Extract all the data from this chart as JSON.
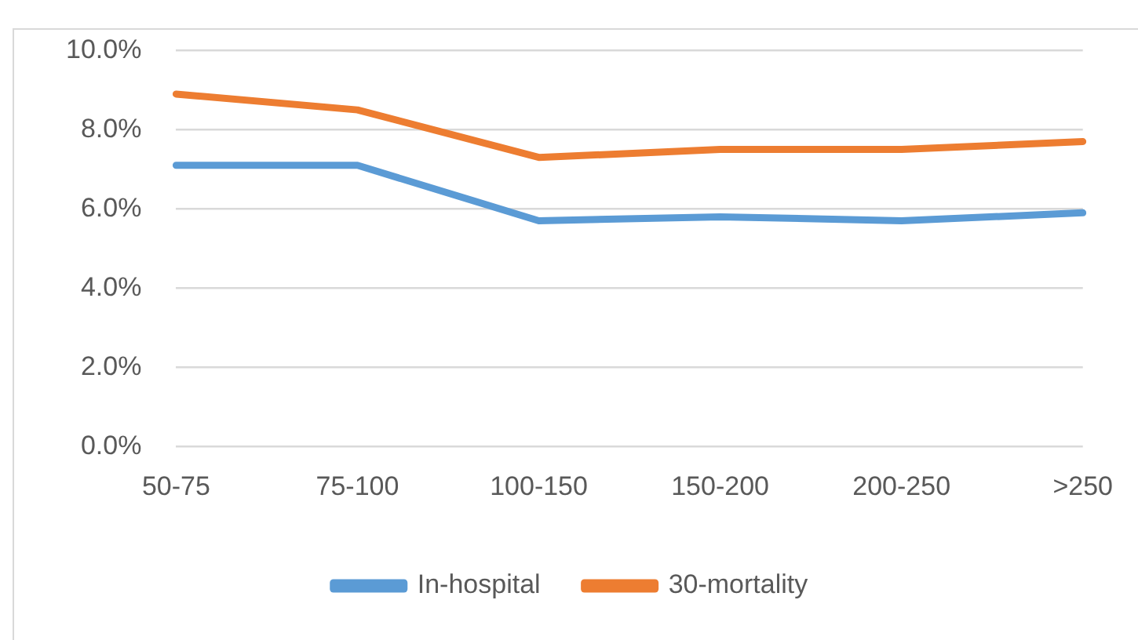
{
  "chart_data": {
    "type": "line",
    "categories": [
      "50-75",
      "75-100",
      "100-150",
      "150-200",
      "200-250",
      ">250"
    ],
    "series": [
      {
        "name": "In-hospital",
        "color": "#5b9bd5",
        "values": [
          7.1,
          7.1,
          5.7,
          5.8,
          5.7,
          5.9
        ]
      },
      {
        "name": "30-mortality",
        "color": "#ed7d31",
        "values": [
          8.9,
          8.5,
          7.3,
          7.5,
          7.5,
          7.7
        ]
      }
    ],
    "ylim": [
      0,
      10
    ],
    "yticks": [
      {
        "value": 0,
        "label": "0.0%"
      },
      {
        "value": 2,
        "label": "2.0%"
      },
      {
        "value": 4,
        "label": "4.0%"
      },
      {
        "value": 6,
        "label": "6.0%"
      },
      {
        "value": 8,
        "label": "8.0%"
      },
      {
        "value": 10,
        "label": "10.0%"
      }
    ],
    "grid": "y",
    "legend": "bottom",
    "marker": "none",
    "line_style": "solid"
  }
}
